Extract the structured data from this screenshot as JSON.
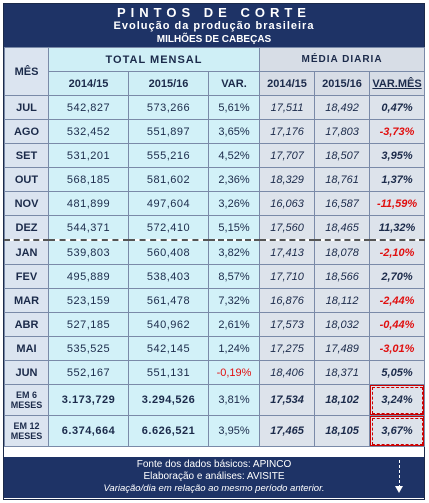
{
  "header": {
    "title": "PINTOS DE CORTE",
    "subtitle": "Evolução da produção brasileira",
    "unit": "MILHÕES DE CABEÇAS"
  },
  "columns": {
    "mes": "MÊS",
    "total_mensal": "TOTAL MENSAL",
    "media_diaria": "MÉDIA DIARIA",
    "y1": "2014/15",
    "y2": "2015/16",
    "var": "VAR.",
    "var_mes": "VAR.MÊS"
  },
  "rows": [
    {
      "mes": "JUL",
      "t1": "542,827",
      "t2": "573,266",
      "var": "5,61%",
      "m1": "17,511",
      "m2": "18,492",
      "vm": "0,47%",
      "neg_var": false,
      "neg_vm": false
    },
    {
      "mes": "AGO",
      "t1": "532,452",
      "t2": "551,897",
      "var": "3,65%",
      "m1": "17,176",
      "m2": "17,803",
      "vm": "-3,73%",
      "neg_var": false,
      "neg_vm": true
    },
    {
      "mes": "SET",
      "t1": "531,201",
      "t2": "555,216",
      "var": "4,52%",
      "m1": "17,707",
      "m2": "18,507",
      "vm": "3,95%",
      "neg_var": false,
      "neg_vm": false
    },
    {
      "mes": "OUT",
      "t1": "568,185",
      "t2": "581,602",
      "var": "2,36%",
      "m1": "18,329",
      "m2": "18,761",
      "vm": "1,37%",
      "neg_var": false,
      "neg_vm": false
    },
    {
      "mes": "NOV",
      "t1": "481,899",
      "t2": "497,604",
      "var": "3,26%",
      "m1": "16,063",
      "m2": "16,587",
      "vm": "-11,59%",
      "neg_var": false,
      "neg_vm": true
    },
    {
      "mes": "DEZ",
      "t1": "544,371",
      "t2": "572,410",
      "var": "5,15%",
      "m1": "17,560",
      "m2": "18,465",
      "vm": "11,32%",
      "neg_var": false,
      "neg_vm": false
    },
    {
      "mes": "JAN",
      "t1": "539,803",
      "t2": "560,408",
      "var": "3,82%",
      "m1": "17,413",
      "m2": "18,078",
      "vm": "-2,10%",
      "neg_var": false,
      "neg_vm": true
    },
    {
      "mes": "FEV",
      "t1": "495,889",
      "t2": "538,403",
      "var": "8,57%",
      "m1": "17,710",
      "m2": "18,566",
      "vm": "2,70%",
      "neg_var": false,
      "neg_vm": false
    },
    {
      "mes": "MAR",
      "t1": "523,159",
      "t2": "561,478",
      "var": "7,32%",
      "m1": "16,876",
      "m2": "18,112",
      "vm": "-2,44%",
      "neg_var": false,
      "neg_vm": true
    },
    {
      "mes": "ABR",
      "t1": "527,185",
      "t2": "540,962",
      "var": "2,61%",
      "m1": "17,573",
      "m2": "18,032",
      "vm": "-0,44%",
      "neg_var": false,
      "neg_vm": true
    },
    {
      "mes": "MAI",
      "t1": "535,525",
      "t2": "542,145",
      "var": "1,24%",
      "m1": "17,275",
      "m2": "17,489",
      "vm": "-3,01%",
      "neg_var": false,
      "neg_vm": true
    },
    {
      "mes": "JUN",
      "t1": "552,167",
      "t2": "551,131",
      "var": "-0,19%",
      "m1": "18,406",
      "m2": "18,371",
      "vm": "5,05%",
      "neg_var": true,
      "neg_vm": false
    }
  ],
  "totals": [
    {
      "mes": "EM 6 MESES",
      "t1": "3.173,729",
      "t2": "3.294,526",
      "var": "3,81%",
      "m1": "17,534",
      "m2": "18,102",
      "vm": "3,24%"
    },
    {
      "mes": "EM 12 MESES",
      "t1": "6.374,664",
      "t2": "6.626,521",
      "var": "3,95%",
      "m1": "17,465",
      "m2": "18,105",
      "vm": "3,67%"
    }
  ],
  "footer": {
    "line1": "Fonte dos dados básicos: APINCO",
    "line2": "Elaboração e análises: AVISITE",
    "line3": "Variação/dia em relação ao mesmo período anterior."
  },
  "colors": {
    "header_bg": "#1e3366",
    "cyan": "#d2f1f8",
    "gray": "#dde3eb",
    "negative": "#e01010"
  }
}
